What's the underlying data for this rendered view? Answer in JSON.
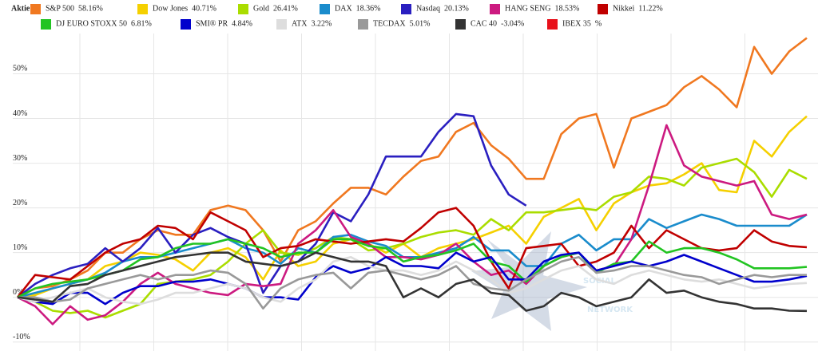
{
  "chart_data": {
    "type": "line",
    "legend_title": "Aktie",
    "ylim": [
      -12,
      59
    ],
    "yticks": [
      {
        "value": -10,
        "label": "-10%"
      },
      {
        "value": 0,
        "label": "0%"
      },
      {
        "value": 10,
        "label": "10%"
      },
      {
        "value": 20,
        "label": "20%"
      },
      {
        "value": 30,
        "label": "30%"
      },
      {
        "value": 40,
        "label": "40%"
      },
      {
        "value": 50,
        "label": "50%"
      }
    ],
    "grid": true,
    "watermark": {
      "line1": "SOCIAL",
      "line2": "NETWORK"
    },
    "series": [
      {
        "name": "S&P 500",
        "change_label": "58.16%",
        "color": "#f07820",
        "values": [
          0,
          2,
          2.5,
          4,
          6,
          10,
          10,
          13,
          15,
          14,
          14,
          19.5,
          20.5,
          19.5,
          15,
          8,
          15,
          17,
          21,
          24.5,
          24.5,
          23,
          27,
          30.5,
          31.5,
          37,
          39,
          34,
          31,
          26.5,
          26.5,
          36.5,
          40,
          41,
          29,
          40,
          41.5,
          43,
          47,
          49.5,
          46.5,
          42.5,
          56,
          50,
          55,
          58
        ]
      },
      {
        "name": "Dow Jones",
        "change_label": "40.71%",
        "color": "#f5d000",
        "values": [
          0,
          0.5,
          2,
          3,
          4,
          7,
          8,
          10,
          9.5,
          8.5,
          6,
          10,
          11,
          9,
          4,
          10.5,
          7,
          8,
          12,
          13,
          12,
          10,
          12,
          9,
          11,
          12,
          13,
          14.5,
          16,
          12,
          18,
          20,
          22,
          15,
          21,
          23.5,
          25,
          25.5,
          27.5,
          30,
          24,
          23.5,
          35,
          31.5,
          37,
          40.5
        ]
      },
      {
        "name": "Gold",
        "change_label": "26.41%",
        "color": "#aadd00",
        "values": [
          0,
          -1,
          -3,
          -3.5,
          -3,
          -4.5,
          -3,
          -1.5,
          3,
          3.5,
          4,
          5,
          8,
          12,
          15,
          10,
          9.5,
          11,
          13.5,
          13,
          10.5,
          11,
          12,
          13.5,
          14.5,
          15,
          14,
          17.5,
          15,
          19,
          19,
          19.5,
          20,
          19.5,
          22.5,
          23.5,
          27,
          26.5,
          25,
          29,
          30,
          31,
          28,
          22.5,
          28.5,
          26.5
        ]
      },
      {
        "name": "DAX",
        "change_label": "18.36%",
        "color": "#1a8ccc",
        "values": [
          0,
          1,
          2,
          3,
          4,
          5.5,
          8,
          9,
          9,
          10,
          11,
          12,
          13,
          11,
          10,
          7.5,
          11,
          10,
          13.5,
          14,
          12.5,
          11.5,
          9,
          9,
          10,
          11,
          13.5,
          10.5,
          10.5,
          7,
          7,
          12,
          14,
          10.5,
          13,
          13,
          17.5,
          15.5,
          17,
          18.5,
          17.5,
          16,
          16,
          16,
          16,
          18.5
        ]
      },
      {
        "name": "Nasdaq",
        "change_label": "20.13%",
        "color": "#2a1fc0",
        "values": [
          0,
          3,
          5,
          6.5,
          7.5,
          11,
          8,
          11,
          15.5,
          10,
          14,
          15.5,
          13.5,
          12,
          1,
          7,
          8,
          12,
          19,
          17,
          23,
          31.5,
          31.5,
          31.5,
          37,
          41,
          40.5,
          29.5,
          23,
          20.5,
          null,
          null,
          null,
          null,
          null,
          null,
          null,
          null,
          null,
          null,
          null,
          null,
          null,
          null,
          null,
          null
        ]
      },
      {
        "name": "HANG SENG",
        "change_label": "18.53%",
        "color": "#cc1a80",
        "values": [
          0,
          -2,
          -6,
          -2,
          -5,
          -4,
          -1,
          3,
          5.5,
          3,
          2,
          1,
          0.5,
          3,
          2.5,
          3,
          12,
          15,
          19.5,
          13.5,
          12,
          9,
          9,
          8.5,
          9.5,
          12,
          8,
          5,
          6,
          3,
          7,
          9,
          10,
          6,
          7,
          13,
          25,
          38.5,
          29.5,
          27,
          26,
          25,
          26,
          18.5,
          17.5,
          18.5
        ]
      },
      {
        "name": "Nikkei",
        "change_label": "11.22%",
        "color": "#c00000",
        "values": [
          0,
          5,
          4.5,
          4,
          7,
          10,
          12,
          13,
          16,
          15.5,
          13,
          19,
          17,
          15,
          9,
          11,
          11.5,
          13,
          12.5,
          12,
          12.5,
          13,
          12.5,
          15.5,
          19,
          20,
          16,
          8,
          2,
          11,
          11.5,
          12,
          7,
          8,
          10,
          16,
          11,
          15,
          13,
          11,
          10.5,
          11,
          15,
          12.5,
          11.5,
          11.2
        ]
      },
      {
        "name": "DJ EURO STOXX 50",
        "change_label": "6.81%",
        "color": "#22c422",
        "values": [
          0,
          2,
          3,
          3.5,
          4,
          5,
          6,
          8.5,
          9,
          11,
          12,
          12,
          13,
          12,
          11,
          9,
          10,
          10,
          13,
          13,
          11.5,
          11,
          8,
          9,
          9.5,
          10.5,
          12,
          8,
          7,
          3.5,
          7,
          9,
          10,
          5.5,
          7.5,
          8,
          12.5,
          10,
          11,
          11,
          10,
          8.5,
          6.5,
          6.5,
          6.5,
          6.8
        ]
      },
      {
        "name": "SMI® PR",
        "change_label": "4.84%",
        "color": "#0000cc",
        "values": [
          0,
          -1,
          -1.5,
          1,
          1,
          -1.5,
          1,
          2.5,
          2.5,
          3.5,
          3.5,
          4,
          3,
          2,
          0,
          0,
          -0.5,
          4.5,
          7,
          5.5,
          6.5,
          9,
          7,
          7,
          6.5,
          10,
          8,
          9,
          4,
          4,
          8,
          9.5,
          10,
          6,
          7,
          8,
          7,
          8,
          9.5,
          8,
          6.5,
          5,
          3.5,
          3.5,
          4,
          4.8
        ]
      },
      {
        "name": "ATX",
        "change_label": "3.22%",
        "color": "#dddddd",
        "values": [
          0,
          -1,
          0,
          1,
          2,
          0,
          -1,
          -1.5,
          -0.5,
          1,
          1,
          2,
          3,
          2,
          0,
          -1,
          2,
          4,
          8,
          9,
          7,
          6,
          6,
          5,
          6,
          8,
          6,
          4,
          1,
          2,
          4,
          6,
          7,
          4,
          3,
          5,
          6,
          5,
          4,
          3.5,
          4,
          3,
          2,
          2.5,
          3,
          3.2
        ]
      },
      {
        "name": "TECDAX",
        "change_label": "5.01%",
        "color": "#999999",
        "values": [
          0,
          0,
          -1,
          -0.5,
          2,
          3,
          4,
          5,
          4,
          5,
          5,
          6,
          5.5,
          3,
          -2.5,
          2,
          4,
          5,
          5.5,
          2,
          5.5,
          6,
          5,
          4,
          5,
          7,
          3,
          2,
          1.5,
          4,
          6,
          8,
          9,
          5.5,
          6,
          7,
          7,
          6,
          5,
          4.5,
          3,
          4,
          5,
          4.5,
          5,
          5
        ]
      },
      {
        "name": "CAC 40",
        "change_label": "-3.04%",
        "color": "#333333",
        "values": [
          0,
          -0.5,
          -1,
          2.5,
          3,
          5,
          6,
          7,
          8,
          9,
          9.5,
          10,
          10,
          8,
          7.5,
          7,
          8,
          10,
          9,
          8,
          8,
          7,
          0,
          2,
          0,
          3,
          4,
          1,
          0.5,
          -3,
          -2,
          1,
          0,
          -2,
          -1,
          0,
          4,
          1,
          1.5,
          0,
          -1,
          -1.5,
          -2.5,
          -2.5,
          -3,
          -3.04
        ]
      },
      {
        "name": "IBEX 35",
        "change_label": "%",
        "color": "#e8101a",
        "values": [
          null,
          null,
          null,
          null,
          null,
          null,
          null,
          null,
          null,
          null,
          null,
          null,
          null,
          null,
          null,
          null,
          null,
          null,
          null,
          null,
          null,
          null,
          null,
          null,
          null,
          null,
          null,
          null,
          null,
          null,
          null,
          null,
          null,
          null,
          null,
          null,
          null,
          null,
          null,
          null,
          null,
          null,
          null,
          null,
          null,
          null
        ]
      }
    ]
  }
}
